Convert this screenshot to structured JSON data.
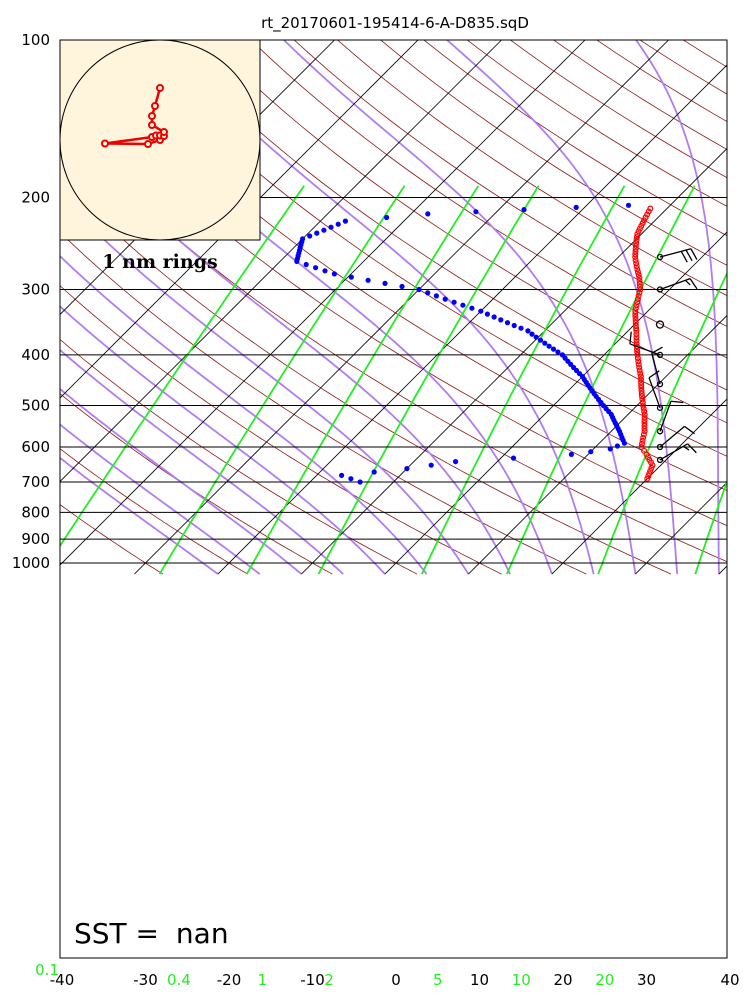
{
  "chart_data": {
    "type": "skew-t",
    "title": "rt_20170601-195414-6-A-D835.sqD",
    "annotation": {
      "label": "SST = ",
      "value": "nan"
    },
    "inset_caption": "1 nm rings",
    "pressure_ticks": [
      100,
      200,
      300,
      400,
      500,
      600,
      700,
      800,
      900,
      1000
    ],
    "temperature_ticks": [
      -40,
      -30,
      -20,
      -10,
      0,
      10,
      20,
      30,
      40
    ],
    "xlim": [
      -40,
      40
    ],
    "plim": [
      1050,
      100
    ],
    "mixing_ratio_labels": [
      {
        "label": "0.1",
        "t": -40
      },
      {
        "label": "0.4",
        "t": -26
      },
      {
        "label": "1",
        "t": -16
      },
      {
        "label": "2",
        "t": -8
      },
      {
        "label": "5",
        "t": 5
      },
      {
        "label": "10",
        "t": 15
      },
      {
        "label": "20",
        "t": 25
      }
    ],
    "colors": {
      "temperature": "#ff0000",
      "dewpoint": "#0000ff",
      "dry_adiabats": "#8b1a1a",
      "moist_adiabats": "#b07df0",
      "mixing_ratio": "#22ee22",
      "isotherms": "#000000",
      "inset_background": "#fff5dc",
      "hodograph": "#ee0000"
    },
    "temperature_profile": [
      {
        "p": 210,
        "t": -12
      },
      {
        "p": 235,
        "t": -10.5
      },
      {
        "p": 260,
        "t": -8
      },
      {
        "p": 285,
        "t": -5
      },
      {
        "p": 300,
        "t": -3.5
      },
      {
        "p": 330,
        "t": -1.5
      },
      {
        "p": 360,
        "t": 1
      },
      {
        "p": 400,
        "t": 4
      },
      {
        "p": 440,
        "t": 7
      },
      {
        "p": 480,
        "t": 9.5
      },
      {
        "p": 520,
        "t": 12
      },
      {
        "p": 560,
        "t": 14
      },
      {
        "p": 600,
        "t": 15.5
      },
      {
        "p": 620,
        "t": 17
      },
      {
        "p": 650,
        "t": 19
      },
      {
        "p": 690,
        "t": 20
      }
    ],
    "dewpoint_profile": [
      {
        "p": 207,
        "t": -15
      },
      {
        "p": 211,
        "t": -27
      },
      {
        "p": 215,
        "t": -38
      },
      {
        "p": 222,
        "t": -47
      },
      {
        "p": 240,
        "t": -50
      },
      {
        "p": 265,
        "t": -48
      },
      {
        "p": 280,
        "t": -42
      },
      {
        "p": 300,
        "t": -30
      },
      {
        "p": 330,
        "t": -20
      },
      {
        "p": 360,
        "t": -12
      },
      {
        "p": 400,
        "t": -5
      },
      {
        "p": 440,
        "t": 0
      },
      {
        "p": 480,
        "t": 4
      },
      {
        "p": 520,
        "t": 8
      },
      {
        "p": 560,
        "t": 11
      },
      {
        "p": 590,
        "t": 13
      },
      {
        "p": 605,
        "t": 12
      },
      {
        "p": 620,
        "t": 8
      },
      {
        "p": 640,
        "t": -5
      },
      {
        "p": 660,
        "t": -10
      },
      {
        "p": 680,
        "t": -17
      },
      {
        "p": 700,
        "t": -14
      }
    ],
    "wind_barbs": [
      {
        "p": 260,
        "speed": 30,
        "direction": 75
      },
      {
        "p": 300,
        "speed": 15,
        "direction": 70
      },
      {
        "p": 350,
        "speed": 0,
        "direction": 0
      },
      {
        "p": 400,
        "speed": 10,
        "direction": 290
      },
      {
        "p": 455,
        "speed": 10,
        "direction": 345
      },
      {
        "p": 505,
        "speed": 10,
        "direction": 340
      },
      {
        "p": 560,
        "speed": 10,
        "direction": 20
      },
      {
        "p": 600,
        "speed": 10,
        "direction": 50
      },
      {
        "p": 635,
        "speed": 15,
        "direction": 60
      }
    ],
    "hodograph": [
      {
        "u": 0,
        "v": 0
      },
      {
        "u": -1.2,
        "v": -0.4
      },
      {
        "u": -5.5,
        "v": -0.35
      },
      {
        "u": -0.8,
        "v": 0.3
      },
      {
        "u": -0.4,
        "v": 0.45
      },
      {
        "u": 0,
        "v": 0.45
      },
      {
        "u": 0.4,
        "v": 0.4
      },
      {
        "u": 0.4,
        "v": 0.8
      },
      {
        "u": -0.8,
        "v": 1.5
      },
      {
        "u": -0.8,
        "v": 2.4
      },
      {
        "u": -0.5,
        "v": 3.4
      },
      {
        "u": 0,
        "v": 5.2
      }
    ]
  }
}
